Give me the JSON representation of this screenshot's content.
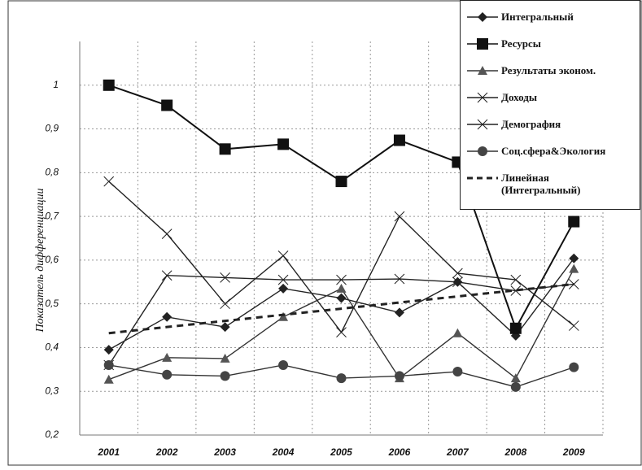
{
  "chart_data": {
    "type": "line",
    "y_label": "Показатель дифференциации",
    "categories": [
      "2001",
      "2002",
      "2003",
      "2004",
      "2005",
      "2006",
      "2007",
      "2008",
      "2009"
    ],
    "ylim": [
      0.2,
      1.1
    ],
    "yticks": [
      {
        "value": 0.2,
        "label": "0,2"
      },
      {
        "value": 0.3,
        "label": "0,3"
      },
      {
        "value": 0.4,
        "label": "0,4"
      },
      {
        "value": 0.5,
        "label": "0,5"
      },
      {
        "value": 0.6,
        "label": "0,6"
      },
      {
        "value": 0.7,
        "label": "0,7"
      },
      {
        "value": 0.8,
        "label": "0,8"
      },
      {
        "value": 0.9,
        "label": "0,9"
      },
      1
    ],
    "grid": true,
    "legend": "top-right",
    "series": [
      {
        "name": "Интегральный",
        "color": "#222222",
        "marker": "diamond",
        "values": [
          0.395,
          0.47,
          0.447,
          0.535,
          0.513,
          0.48,
          0.55,
          0.427,
          0.604
        ]
      },
      {
        "name": "Ресурсы",
        "color": "#111111",
        "marker": "square",
        "values": [
          1.0,
          0.954,
          0.854,
          0.865,
          0.78,
          0.874,
          0.824,
          0.444,
          0.688
        ]
      },
      {
        "name": "Результаты эконом.",
        "color": "#333333",
        "marker": "triangle",
        "values": [
          0.327,
          0.377,
          0.375,
          0.47,
          0.535,
          0.33,
          0.433,
          0.33,
          0.58
        ]
      },
      {
        "name": "Доходы",
        "color": "#222222",
        "marker": "x",
        "values": [
          0.78,
          0.66,
          0.5,
          0.61,
          0.435,
          0.7,
          0.57,
          0.555,
          0.45
        ]
      },
      {
        "name": "Демография",
        "color": "#222222",
        "marker": "x",
        "values": [
          0.36,
          0.565,
          0.56,
          0.555,
          0.555,
          0.557,
          0.55,
          0.53,
          0.545
        ]
      },
      {
        "name": "Соц.сфера&Экология",
        "color": "#333333",
        "marker": "circle",
        "values": [
          0.36,
          0.338,
          0.335,
          0.36,
          0.33,
          0.335,
          0.345,
          0.31,
          0.355
        ]
      },
      {
        "name": "Линейная (Интегральный)",
        "color": "#222222",
        "dash": true,
        "values": [
          0.433,
          0.447,
          0.461,
          0.475,
          0.489,
          0.503,
          0.517,
          0.531,
          0.545
        ]
      }
    ]
  }
}
